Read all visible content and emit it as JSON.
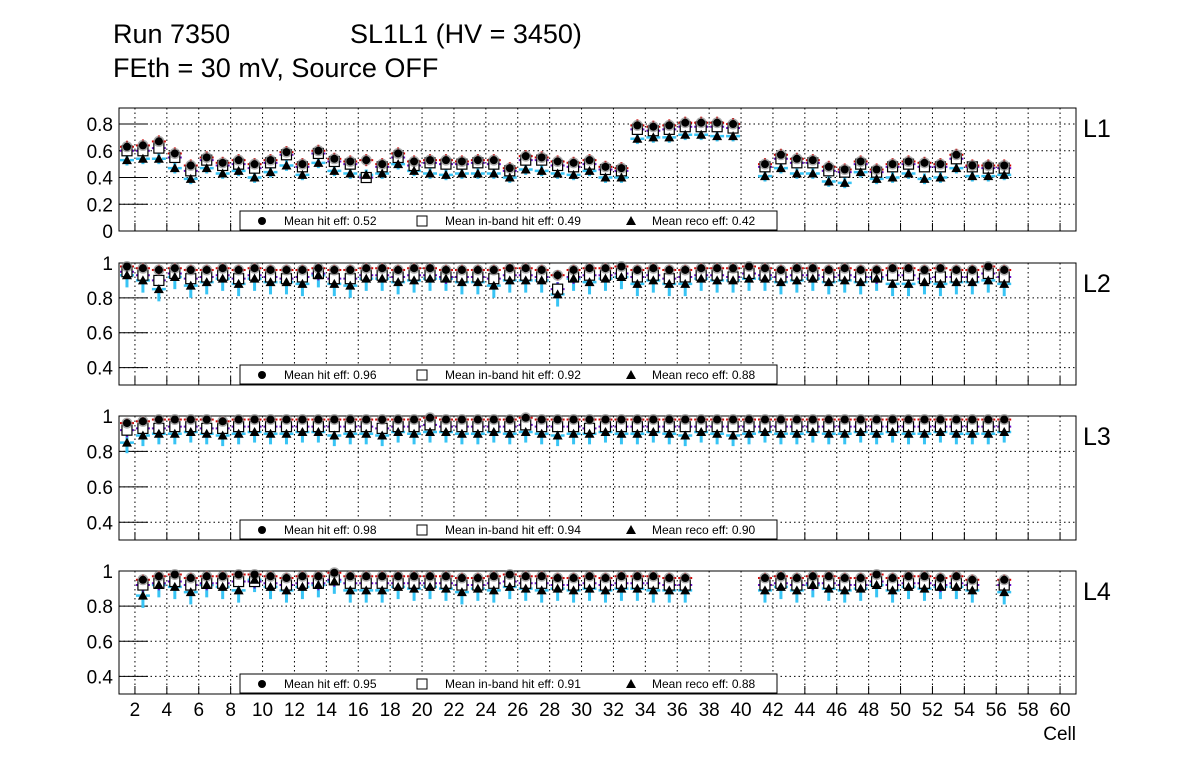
{
  "title": {
    "run": "Run 7350",
    "chamber": "SL1L1 (HV = 3450)",
    "subtitle": "FEth = 30 mV, Source OFF"
  },
  "colors": {
    "hit": "#d00000",
    "inband": "#6a10c8",
    "reco": "#38c4f4",
    "marker": "#000000"
  },
  "chart_data": {
    "type": "scatter",
    "xlabel": "Cell",
    "xlim": [
      1,
      61
    ],
    "xticks": [
      "2",
      "4",
      "6",
      "8",
      "10",
      "12",
      "14",
      "16",
      "18",
      "20",
      "22",
      "24",
      "26",
      "28",
      "30",
      "32",
      "34",
      "36",
      "38",
      "40",
      "42",
      "44",
      "46",
      "48",
      "50",
      "52",
      "54",
      "56",
      "58",
      "60"
    ],
    "grid": true,
    "legend_placement": "bottom-center",
    "layers": [
      {
        "name": "L1",
        "ylim": [
          0,
          0.92
        ],
        "yticks": [
          "0",
          "0.2",
          "0.4",
          "0.6",
          "0.8"
        ],
        "ytick_values": [
          0,
          0.2,
          0.4,
          0.6,
          0.8
        ],
        "legend": {
          "hit": "Mean hit  eff: 0.52",
          "inband": "Mean in-band hit eff: 0.49",
          "reco": "Mean reco eff: 0.42"
        },
        "errors": {
          "hit": 0.045,
          "inband": 0.03,
          "reco": 0.04
        },
        "hit": [
          0.63,
          0.64,
          0.67,
          0.58,
          0.49,
          0.55,
          0.51,
          0.53,
          0.5,
          0.53,
          0.59,
          0.5,
          0.6,
          0.54,
          0.52,
          0.53,
          0.5,
          0.58,
          0.52,
          0.53,
          0.53,
          0.52,
          0.53,
          0.53,
          0.47,
          0.56,
          0.55,
          0.52,
          0.51,
          0.53,
          0.48,
          0.47,
          0.79,
          0.78,
          0.79,
          0.81,
          0.81,
          0.81,
          0.8,
          null,
          0.5,
          0.57,
          0.54,
          0.53,
          0.48,
          0.46,
          0.52,
          0.46,
          0.5,
          0.52,
          0.51,
          0.5,
          0.57,
          0.49,
          0.49,
          0.49
        ],
        "inband": [
          0.6,
          0.6,
          0.62,
          0.55,
          0.45,
          0.53,
          0.49,
          0.5,
          0.47,
          0.51,
          0.57,
          0.48,
          0.58,
          0.52,
          0.5,
          0.4,
          0.48,
          0.55,
          0.49,
          0.51,
          0.5,
          0.5,
          0.51,
          0.5,
          0.45,
          0.53,
          0.53,
          0.49,
          0.48,
          0.5,
          0.46,
          0.45,
          0.76,
          0.75,
          0.76,
          0.78,
          0.78,
          0.78,
          0.77,
          null,
          0.48,
          0.54,
          0.51,
          0.51,
          0.45,
          0.44,
          0.5,
          0.44,
          0.48,
          0.5,
          0.48,
          0.48,
          0.54,
          0.48,
          0.47,
          0.47
        ],
        "reco": [
          0.53,
          0.54,
          0.54,
          0.47,
          0.39,
          0.47,
          0.43,
          0.45,
          0.4,
          0.44,
          0.49,
          0.42,
          0.51,
          0.45,
          0.43,
          0.42,
          0.43,
          0.5,
          0.45,
          0.43,
          0.42,
          0.43,
          0.43,
          0.43,
          0.4,
          0.46,
          0.45,
          0.43,
          0.42,
          0.45,
          0.4,
          0.4,
          0.69,
          0.7,
          0.7,
          0.72,
          0.72,
          0.71,
          0.71,
          null,
          0.41,
          0.47,
          0.43,
          0.43,
          0.37,
          0.36,
          0.44,
          0.39,
          0.4,
          0.43,
          0.39,
          0.4,
          0.47,
          0.41,
          0.41,
          0.42
        ]
      },
      {
        "name": "L2",
        "ylim": [
          0.3,
          1.0
        ],
        "yticks": [
          "0.4",
          "0.6",
          "0.8",
          "1"
        ],
        "ytick_values": [
          0.4,
          0.6,
          0.8,
          1.0
        ],
        "legend": {
          "hit": "Mean hit  eff: 0.96",
          "inband": "Mean in-band hit eff: 0.92",
          "reco": "Mean reco eff: 0.88"
        },
        "errors": {
          "hit": 0.03,
          "inband": 0.04,
          "reco": 0.07
        },
        "hit": [
          0.98,
          0.97,
          0.96,
          0.97,
          0.96,
          0.96,
          0.97,
          0.96,
          0.97,
          0.96,
          0.96,
          0.96,
          0.97,
          0.96,
          0.96,
          0.97,
          0.97,
          0.96,
          0.97,
          0.97,
          0.96,
          0.96,
          0.96,
          0.96,
          0.97,
          0.97,
          0.96,
          0.93,
          0.96,
          0.97,
          0.97,
          0.98,
          0.96,
          0.97,
          0.96,
          0.96,
          0.97,
          0.97,
          0.97,
          0.98,
          0.97,
          0.96,
          0.97,
          0.97,
          0.96,
          0.97,
          0.96,
          0.96,
          0.97,
          0.97,
          0.96,
          0.97,
          0.96,
          0.96,
          0.98,
          0.96
        ],
        "inband": [
          0.95,
          0.93,
          0.9,
          0.94,
          0.91,
          0.92,
          0.93,
          0.91,
          0.93,
          0.92,
          0.91,
          0.92,
          0.94,
          0.91,
          0.91,
          0.93,
          0.93,
          0.92,
          0.93,
          0.93,
          0.92,
          0.92,
          0.92,
          0.91,
          0.93,
          0.93,
          0.92,
          0.85,
          0.92,
          0.93,
          0.93,
          0.94,
          0.92,
          0.93,
          0.91,
          0.92,
          0.93,
          0.93,
          0.92,
          0.94,
          0.93,
          0.92,
          0.93,
          0.93,
          0.92,
          0.93,
          0.92,
          0.92,
          0.93,
          0.93,
          0.91,
          0.92,
          0.92,
          0.92,
          0.94,
          0.92
        ],
        "reco": [
          0.93,
          0.9,
          0.85,
          0.92,
          0.87,
          0.89,
          0.91,
          0.88,
          0.91,
          0.89,
          0.89,
          0.88,
          0.93,
          0.88,
          0.87,
          0.91,
          0.91,
          0.89,
          0.9,
          0.91,
          0.91,
          0.89,
          0.89,
          0.87,
          0.9,
          0.9,
          0.9,
          0.82,
          0.91,
          0.89,
          0.91,
          0.92,
          0.88,
          0.9,
          0.88,
          0.88,
          0.91,
          0.9,
          0.9,
          0.91,
          0.91,
          0.89,
          0.9,
          0.91,
          0.89,
          0.9,
          0.89,
          0.91,
          0.88,
          0.88,
          0.89,
          0.88,
          0.89,
          0.89,
          0.9,
          0.88
        ]
      },
      {
        "name": "L3",
        "ylim": [
          0.3,
          1.0
        ],
        "yticks": [
          "0.4",
          "0.6",
          "0.8",
          "1"
        ],
        "ytick_values": [
          0.4,
          0.6,
          0.8,
          1.0
        ],
        "legend": {
          "hit": "Mean hit  eff: 0.98",
          "inband": "Mean in-band hit eff: 0.94",
          "reco": "Mean reco eff: 0.90"
        },
        "errors": {
          "hit": 0.025,
          "inband": 0.04,
          "reco": 0.06
        },
        "hit": [
          0.96,
          0.97,
          0.98,
          0.98,
          0.98,
          0.98,
          0.97,
          0.98,
          0.98,
          0.98,
          0.98,
          0.98,
          0.98,
          0.98,
          0.98,
          0.98,
          0.98,
          0.98,
          0.98,
          0.99,
          0.98,
          0.98,
          0.98,
          0.98,
          0.98,
          0.99,
          0.98,
          0.98,
          0.98,
          0.98,
          0.98,
          0.98,
          0.98,
          0.98,
          0.98,
          0.98,
          0.98,
          0.98,
          0.98,
          0.98,
          0.98,
          0.98,
          0.98,
          0.98,
          0.98,
          0.98,
          0.98,
          0.98,
          0.98,
          0.98,
          0.98,
          0.98,
          0.98,
          0.98,
          0.98,
          0.98
        ],
        "inband": [
          0.92,
          0.93,
          0.93,
          0.94,
          0.94,
          0.93,
          0.93,
          0.94,
          0.94,
          0.94,
          0.94,
          0.94,
          0.94,
          0.94,
          0.94,
          0.94,
          0.93,
          0.94,
          0.94,
          0.95,
          0.94,
          0.94,
          0.94,
          0.94,
          0.94,
          0.95,
          0.94,
          0.94,
          0.94,
          0.93,
          0.94,
          0.94,
          0.94,
          0.94,
          0.94,
          0.94,
          0.94,
          0.94,
          0.94,
          0.94,
          0.94,
          0.94,
          0.94,
          0.94,
          0.94,
          0.94,
          0.94,
          0.94,
          0.94,
          0.94,
          0.94,
          0.94,
          0.94,
          0.94,
          0.94,
          0.94
        ],
        "reco": [
          0.85,
          0.89,
          0.9,
          0.9,
          0.91,
          0.9,
          0.89,
          0.9,
          0.91,
          0.9,
          0.9,
          0.91,
          0.91,
          0.89,
          0.9,
          0.9,
          0.89,
          0.91,
          0.9,
          0.91,
          0.91,
          0.9,
          0.9,
          0.91,
          0.9,
          0.91,
          0.9,
          0.89,
          0.9,
          0.9,
          0.91,
          0.9,
          0.9,
          0.91,
          0.9,
          0.89,
          0.91,
          0.9,
          0.89,
          0.9,
          0.91,
          0.9,
          0.9,
          0.91,
          0.9,
          0.9,
          0.91,
          0.9,
          0.91,
          0.9,
          0.9,
          0.91,
          0.9,
          0.9,
          0.9,
          0.91
        ]
      },
      {
        "name": "L4",
        "ylim": [
          0.3,
          1.0
        ],
        "yticks": [
          "0.4",
          "0.6",
          "0.8",
          "1"
        ],
        "ytick_values": [
          0.4,
          0.6,
          0.8,
          1.0
        ],
        "legend": {
          "hit": "Mean hit  eff: 0.95",
          "inband": "Mean in-band hit eff: 0.91",
          "reco": "Mean reco eff: 0.88"
        },
        "errors": {
          "hit": 0.03,
          "inband": 0.04,
          "reco": 0.07
        },
        "hit": [
          null,
          0.95,
          0.97,
          0.98,
          0.96,
          0.97,
          0.97,
          0.98,
          0.98,
          0.97,
          0.96,
          0.97,
          0.97,
          0.99,
          0.97,
          0.97,
          0.97,
          0.97,
          0.97,
          0.97,
          0.97,
          0.96,
          0.96,
          0.97,
          0.98,
          0.97,
          0.97,
          0.96,
          0.96,
          0.97,
          0.96,
          0.97,
          0.97,
          0.97,
          0.96,
          0.96,
          null,
          null,
          null,
          null,
          0.96,
          0.97,
          0.96,
          0.97,
          0.97,
          0.96,
          0.96,
          0.98,
          0.96,
          0.97,
          0.97,
          0.96,
          0.97,
          0.95,
          null,
          0.95
        ],
        "inband": [
          null,
          0.92,
          0.93,
          0.94,
          0.92,
          0.93,
          0.93,
          0.94,
          0.94,
          0.93,
          0.92,
          0.93,
          0.93,
          0.95,
          0.93,
          0.93,
          0.93,
          0.93,
          0.93,
          0.93,
          0.93,
          0.92,
          0.92,
          0.93,
          0.94,
          0.93,
          0.93,
          0.92,
          0.92,
          0.93,
          0.92,
          0.93,
          0.93,
          0.93,
          0.92,
          0.92,
          null,
          null,
          null,
          null,
          0.92,
          0.93,
          0.92,
          0.93,
          0.93,
          0.92,
          0.92,
          0.94,
          0.92,
          0.93,
          0.93,
          0.92,
          0.93,
          0.92,
          null,
          0.92
        ],
        "reco": [
          null,
          0.86,
          0.92,
          0.91,
          0.88,
          0.92,
          0.91,
          0.89,
          0.95,
          0.91,
          0.89,
          0.91,
          0.92,
          0.94,
          0.89,
          0.89,
          0.89,
          0.91,
          0.9,
          0.91,
          0.9,
          0.88,
          0.9,
          0.89,
          0.91,
          0.9,
          0.89,
          0.9,
          0.89,
          0.9,
          0.89,
          0.9,
          0.9,
          0.89,
          0.89,
          0.89,
          null,
          null,
          null,
          null,
          0.89,
          0.91,
          0.89,
          0.92,
          0.9,
          0.89,
          0.9,
          0.92,
          0.89,
          0.91,
          0.9,
          0.91,
          0.91,
          0.89,
          null,
          0.88
        ]
      }
    ]
  }
}
